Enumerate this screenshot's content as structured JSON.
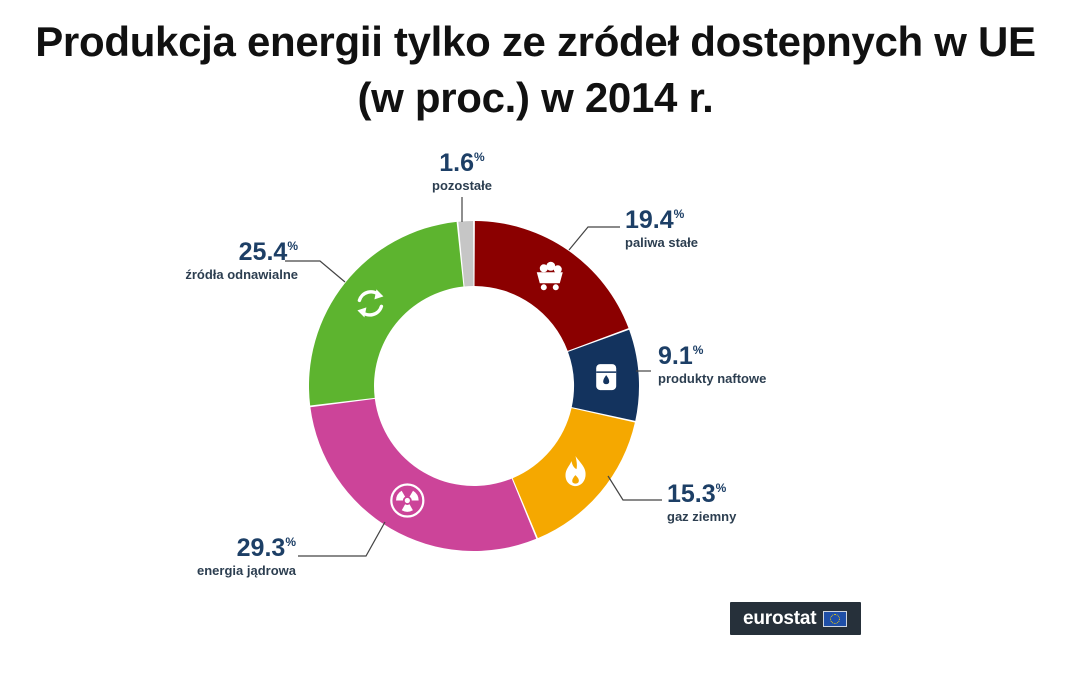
{
  "header": {
    "title_line1": "Produkcja energii tylko ze zródeł dostepnych w UE",
    "title_line2": "(w proc.) w  2014 r."
  },
  "chart_data": {
    "type": "pie",
    "donut": true,
    "start": "top",
    "direction": "clockwise",
    "unit": "%",
    "slices": [
      {
        "label": "paliwa stałe",
        "value": 19.4,
        "display": "19.4",
        "color": "#8b0000",
        "icon": "coal-cart-icon"
      },
      {
        "label": "produkty naftowe",
        "value": 9.1,
        "display": "9.1",
        "color": "#13335e",
        "icon": "oil-barrel-icon"
      },
      {
        "label": "gaz ziemny",
        "value": 15.3,
        "display": "15.3",
        "color": "#f5a800",
        "icon": "flame-icon"
      },
      {
        "label": "energia jądrowa",
        "value": 29.3,
        "display": "29.3",
        "color": "#cc4499",
        "icon": "radiation-icon"
      },
      {
        "label": "źródła odnawialne",
        "value": 25.4,
        "display": "25.4",
        "color": "#5db42f",
        "icon": "recycle-icon"
      },
      {
        "label": "pozostałe",
        "value": 1.6,
        "display": "1.6",
        "color": "#c6c6c6",
        "icon": ""
      }
    ]
  },
  "branding": {
    "logo_text": "eurostat",
    "flag_icon": "eu-flag-icon"
  }
}
